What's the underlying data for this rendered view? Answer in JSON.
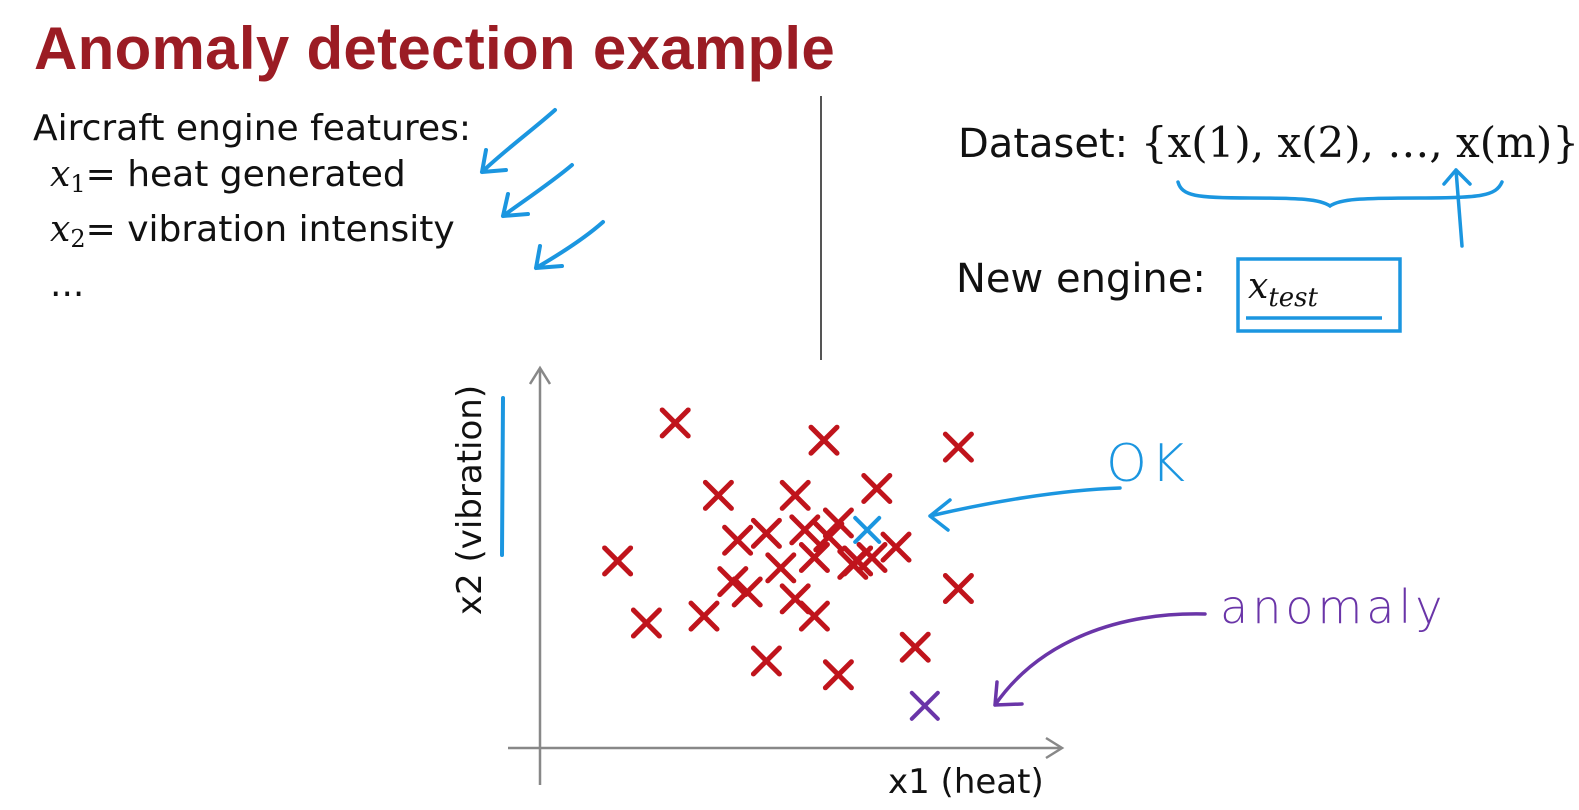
{
  "title": "Anomaly detection example",
  "features": {
    "heading": "Aircraft engine features:",
    "items": [
      {
        "var": "x",
        "sub": "1",
        "text": "= heat generated"
      },
      {
        "var": "x",
        "sub": "2",
        "text": "= vibration intensity"
      }
    ],
    "ellipsis": "..."
  },
  "dataset": {
    "label": "Dataset:",
    "set_text": "{x(1), x(2), …, x(m)}"
  },
  "new_engine": {
    "label": "New engine:",
    "var": "x",
    "sub": "test"
  },
  "annotations": {
    "ok": "OK",
    "anomaly": "anomaly"
  },
  "colors": {
    "title": "#9b1c24",
    "data_marker": "#c0141c",
    "ok_marker": "#1b96e0",
    "anomaly_marker": "#6a35a8",
    "axis": "#888888"
  },
  "chart_data": {
    "type": "scatter",
    "xlabel": "x1 (heat)",
    "ylabel": "x2 (vibration)",
    "xlim": [
      0,
      100
    ],
    "ylim": [
      0,
      100
    ],
    "grid": false,
    "series": [
      {
        "points": [
          [
            24,
            89
          ],
          [
            55,
            84
          ],
          [
            83,
            82
          ],
          [
            33,
            68
          ],
          [
            49,
            68
          ],
          [
            66,
            70
          ],
          [
            37,
            55
          ],
          [
            43,
            57
          ],
          [
            51,
            58
          ],
          [
            58,
            60
          ],
          [
            56,
            56
          ],
          [
            12,
            49
          ],
          [
            36,
            43
          ],
          [
            46,
            47
          ],
          [
            53,
            50
          ],
          [
            61,
            48
          ],
          [
            65,
            50
          ],
          [
            70,
            53
          ],
          [
            39,
            40
          ],
          [
            49,
            38
          ],
          [
            62,
            49
          ],
          [
            83,
            41
          ],
          [
            18,
            31
          ],
          [
            30,
            33
          ],
          [
            53,
            33
          ],
          [
            43,
            20
          ],
          [
            58,
            16
          ],
          [
            74,
            24
          ]
        ]
      },
      {
        "points": [
          [
            64,
            58
          ]
        ]
      },
      {
        "points": [
          [
            76,
            7
          ]
        ]
      }
    ]
  }
}
